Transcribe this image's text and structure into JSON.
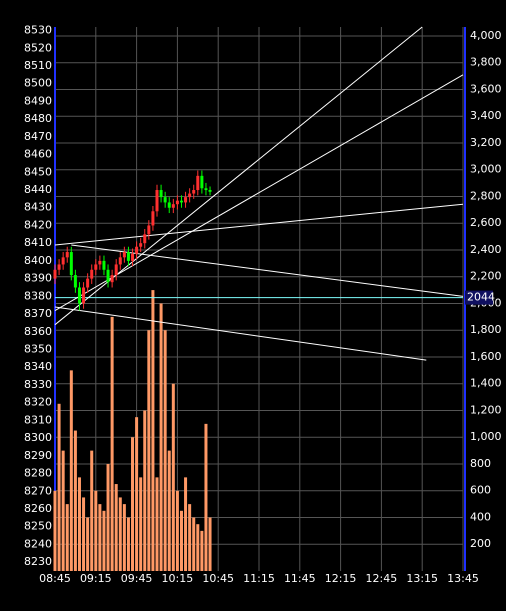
{
  "chart_data": {
    "type": "candlestick",
    "x": [
      "08:45",
      "08:48",
      "08:51",
      "08:54",
      "08:57",
      "09:00",
      "09:03",
      "09:06",
      "09:09",
      "09:12",
      "09:15",
      "09:18",
      "09:21",
      "09:24",
      "09:27",
      "09:30",
      "09:33",
      "09:36",
      "09:39",
      "09:42",
      "09:45",
      "09:48",
      "09:51",
      "09:54",
      "09:57",
      "10:00",
      "10:03",
      "10:06",
      "10:09",
      "10:12",
      "10:15",
      "10:18",
      "10:21",
      "10:24",
      "10:27",
      "10:30",
      "10:33",
      "10:36",
      "10:39"
    ],
    "open": [
      8390,
      8395,
      8398,
      8402,
      8405,
      8392,
      8385,
      8376,
      8385,
      8390,
      8395,
      8398,
      8400,
      8395,
      8388,
      8392,
      8398,
      8402,
      8405,
      8400,
      8404,
      8408,
      8410,
      8415,
      8420,
      8428,
      8440,
      8436,
      8433,
      8430,
      8432,
      8434,
      8433,
      8436,
      8438,
      8440,
      8448,
      8441,
      8440
    ],
    "high": [
      8398,
      8401,
      8405,
      8408,
      8408,
      8395,
      8388,
      8388,
      8393,
      8398,
      8401,
      8403,
      8403,
      8398,
      8395,
      8401,
      8405,
      8408,
      8408,
      8407,
      8411,
      8413,
      8418,
      8423,
      8431,
      8443,
      8443,
      8439,
      8436,
      8435,
      8437,
      8437,
      8439,
      8441,
      8443,
      8451,
      8451,
      8444,
      8442
    ],
    "low": [
      8387,
      8392,
      8395,
      8399,
      8389,
      8382,
      8372,
      8373,
      8382,
      8387,
      8392,
      8395,
      8392,
      8385,
      8385,
      8389,
      8395,
      8399,
      8397,
      8397,
      8401,
      8405,
      8407,
      8412,
      8417,
      8425,
      8433,
      8430,
      8427,
      8427,
      8429,
      8430,
      8430,
      8433,
      8435,
      8437,
      8438,
      8437,
      8437
    ],
    "close": [
      8395,
      8398,
      8402,
      8405,
      8392,
      8385,
      8376,
      8385,
      8390,
      8395,
      8398,
      8400,
      8395,
      8388,
      8392,
      8398,
      8402,
      8405,
      8400,
      8404,
      8408,
      8410,
      8415,
      8420,
      8428,
      8440,
      8436,
      8433,
      8430,
      8432,
      8434,
      8433,
      8436,
      8438,
      8440,
      8448,
      8441,
      8440,
      8439
    ],
    "up_color": "#ff3030",
    "down_color": "#00ff00",
    "volume": {
      "axis": "y2",
      "color": "#ff9966",
      "values": [
        600,
        1250,
        900,
        500,
        1500,
        1050,
        700,
        550,
        400,
        900,
        600,
        500,
        450,
        800,
        1900,
        650,
        550,
        500,
        400,
        1000,
        1150,
        700,
        1200,
        1800,
        2100,
        700,
        2000,
        1800,
        900,
        1400,
        600,
        450,
        700,
        500,
        400,
        350,
        300,
        1100,
        400
      ]
    },
    "xlim": [
      "08:45",
      "13:45"
    ],
    "xticks": [
      "08:45",
      "09:15",
      "09:45",
      "10:15",
      "10:45",
      "11:15",
      "11:45",
      "12:15",
      "12:45",
      "13:15",
      "13:45"
    ],
    "ylim": [
      8225,
      8532
    ],
    "yticks": [
      8230,
      8240,
      8250,
      8260,
      8270,
      8280,
      8290,
      8300,
      8310,
      8320,
      8330,
      8340,
      8350,
      8360,
      8370,
      8380,
      8390,
      8400,
      8410,
      8420,
      8430,
      8440,
      8450,
      8460,
      8470,
      8480,
      8490,
      8500,
      8510,
      8520,
      8530
    ],
    "y2lim": [
      0,
      4067
    ],
    "y2ticks": [
      200,
      400,
      600,
      800,
      {
        "value": 1000,
        "label": "1,000"
      },
      {
        "value": 1200,
        "label": "1,200"
      },
      {
        "value": 1400,
        "label": "1,400"
      },
      {
        "value": 1600,
        "label": "1,600"
      },
      {
        "value": 1800,
        "label": "1,800"
      },
      {
        "value": 2000,
        "label": "2,000"
      },
      {
        "value": 2200,
        "label": "2,200"
      },
      {
        "value": 2400,
        "label": "2,400"
      },
      {
        "value": 2600,
        "label": "2,600"
      },
      {
        "value": 2800,
        "label": "2,800"
      },
      {
        "value": 3000,
        "label": "3,000"
      },
      {
        "value": 3200,
        "label": "3,200"
      },
      {
        "value": 3400,
        "label": "3,400"
      },
      {
        "value": 3600,
        "label": "3,600"
      },
      {
        "value": 3800,
        "label": "3,800"
      },
      {
        "value": 4000,
        "label": "4,000"
      }
    ],
    "grid": true,
    "trend_lines": [
      {
        "x1": "08:45",
        "y1": 8364,
        "x2": "13:15",
        "y2": 8532
      },
      {
        "x1": "08:45",
        "y1": 8372,
        "x2": "13:45",
        "y2": 8505
      },
      {
        "x1": "08:45",
        "y1": 8409,
        "x2": "13:45",
        "y2": 8432
      },
      {
        "x1": "08:57",
        "y1": 8409,
        "x2": "13:45",
        "y2": 8380
      },
      {
        "x1": "08:45",
        "y1": 8374,
        "x2": "13:18",
        "y2": 8344
      }
    ],
    "trend_color": "#ffffff",
    "hline": {
      "value": 2044,
      "label": "2044",
      "axis": "y2",
      "color": "#7fffff"
    }
  }
}
